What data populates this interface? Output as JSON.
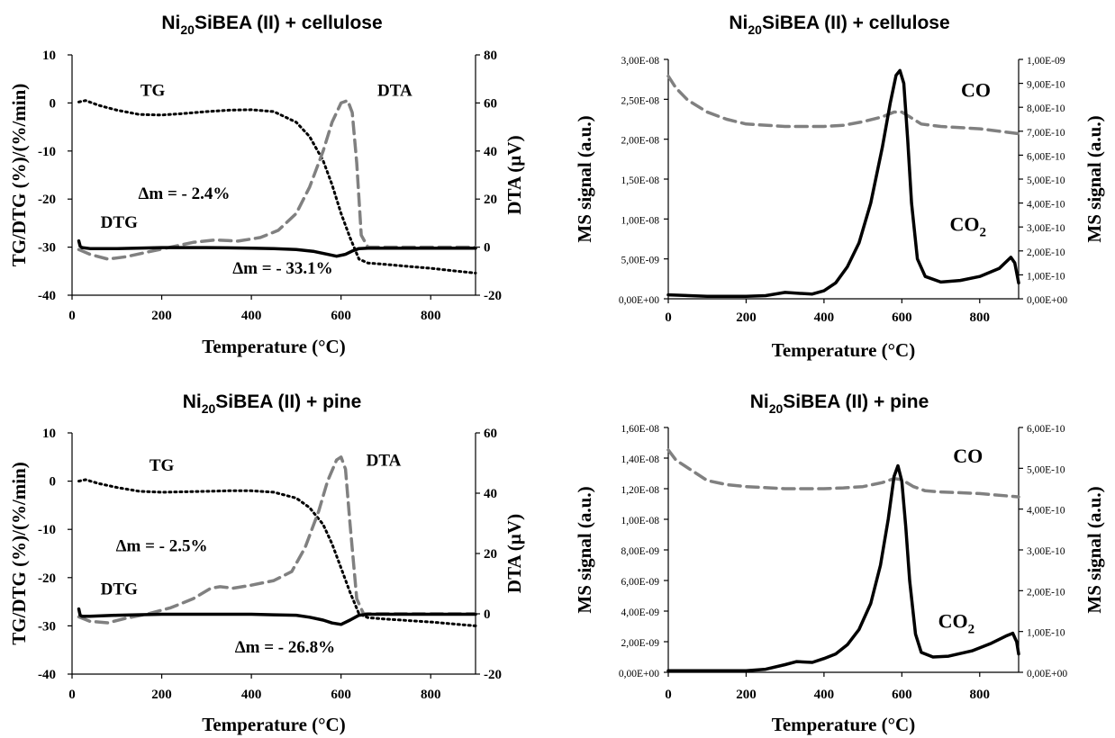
{
  "chart_data": [
    {
      "type": "line",
      "panel": "TG/DTA cellulose",
      "title": {
        "pre": "Ni",
        "sub": "20",
        "post": "SiBEA (II) + cellulose"
      },
      "xlabel": "Temperature (°C)",
      "ylabel": "TG/DTG (%)/(%/min)",
      "y2label": "DTA (µV)",
      "xlim": [
        0,
        900
      ],
      "ylim": [
        -40,
        10
      ],
      "y2lim": [
        -20,
        80
      ],
      "xticks": [
        "0",
        "200",
        "400",
        "600",
        "800"
      ],
      "yticks": [
        "-40",
        "-30",
        "-20",
        "-10",
        "0",
        "10"
      ],
      "y2ticks": [
        "-20",
        "0",
        "20",
        "40",
        "60",
        "80"
      ],
      "annotations": [
        {
          "text": "TG",
          "x": 180,
          "y": 1.5
        },
        {
          "text": "DTA",
          "x": 720,
          "y": 1.5
        },
        {
          "text": "Δm = - 2.4%",
          "x": 250,
          "y": -20
        },
        {
          "text": "DTG",
          "x": 105,
          "y": -26
        },
        {
          "text": "Δm = - 33.1%",
          "x": 470,
          "y": -35.5
        }
      ],
      "series": [
        {
          "name": "TG",
          "axis": "left",
          "style": "dotted",
          "color": "#000000",
          "x": [
            15,
            30,
            60,
            100,
            150,
            200,
            250,
            300,
            350,
            400,
            450,
            500,
            530,
            560,
            580,
            600,
            620,
            640,
            660,
            700,
            750,
            800,
            850,
            900
          ],
          "y": [
            0.2,
            0.5,
            -0.5,
            -1.5,
            -2.4,
            -2.5,
            -2.2,
            -1.8,
            -1.5,
            -1.4,
            -1.8,
            -4,
            -7,
            -12,
            -17,
            -23,
            -28,
            -32.5,
            -33.3,
            -33.6,
            -34,
            -34.4,
            -34.9,
            -35.4
          ]
        },
        {
          "name": "DTA",
          "axis": "right",
          "style": "dashed",
          "color": "#808080",
          "x": [
            15,
            40,
            80,
            120,
            170,
            220,
            270,
            320,
            370,
            420,
            460,
            500,
            530,
            560,
            580,
            600,
            615,
            625,
            635,
            645,
            660,
            700,
            750,
            800,
            850,
            900
          ],
          "y": [
            -1,
            -3,
            -5,
            -4,
            -2,
            0,
            2,
            3,
            2.5,
            4,
            7,
            14,
            25,
            40,
            52,
            60,
            61,
            56,
            35,
            5,
            0,
            0,
            0,
            0,
            0,
            0
          ]
        },
        {
          "name": "DTG",
          "axis": "left",
          "style": "solid",
          "color": "#000000",
          "x": [
            15,
            18,
            22,
            40,
            100,
            200,
            300,
            400,
            450,
            500,
            540,
            570,
            590,
            610,
            625,
            640,
            660,
            700,
            800,
            900
          ],
          "y": [
            -28.7,
            -29.8,
            -30.1,
            -30.3,
            -30.3,
            -30.1,
            -30.1,
            -30.2,
            -30.3,
            -30.5,
            -30.9,
            -31.5,
            -31.9,
            -31.5,
            -30.8,
            -30.3,
            -30.2,
            -30.2,
            -30.2,
            -30.2
          ]
        }
      ]
    },
    {
      "type": "line",
      "panel": "MS cellulose",
      "title": {
        "pre": "Ni",
        "sub": "20",
        "post": "SiBEA (II) + cellulose"
      },
      "xlabel": "Temperature (°C)",
      "ylabel": "MS signal (a.u.)",
      "y2label": "MS signal (a.u.)",
      "xlim": [
        0,
        900
      ],
      "ylim": [
        0,
        3e-08
      ],
      "y2lim": [
        0,
        1e-09
      ],
      "xticks": [
        "0",
        "200",
        "400",
        "600",
        "800"
      ],
      "yticks": [
        "0,00E+00",
        "5,00E-09",
        "1,00E-08",
        "1,50E-08",
        "2,00E-08",
        "2,50E-08",
        "3,00E-08"
      ],
      "y2ticks": [
        "0,00E+00",
        "1,00E-10",
        "2,00E-10",
        "3,00E-10",
        "4,00E-10",
        "5,00E-10",
        "6,00E-10",
        "7,00E-10",
        "8,00E-10",
        "9,00E-10",
        "1,00E-09"
      ],
      "annotations": [
        {
          "text": "CO",
          "x": 790,
          "y": 2.53e-08
        },
        {
          "text": "CO",
          "sub": "2",
          "x": 770,
          "y": 8.5e-09
        }
      ],
      "series": [
        {
          "name": "CO",
          "axis": "right",
          "style": "dashed",
          "color": "#808080",
          "x": [
            0,
            20,
            50,
            100,
            150,
            200,
            300,
            400,
            450,
            500,
            550,
            580,
            600,
            620,
            650,
            700,
            800,
            900
          ],
          "y": [
            9.3e-10,
            8.8e-10,
            8.3e-10,
            7.8e-10,
            7.5e-10,
            7.3e-10,
            7.2e-10,
            7.2e-10,
            7.25e-10,
            7.4e-10,
            7.6e-10,
            7.8e-10,
            7.8e-10,
            7.6e-10,
            7.3e-10,
            7.2e-10,
            7.1e-10,
            6.9e-10
          ]
        },
        {
          "name": "CO2",
          "axis": "left",
          "style": "solid",
          "color": "#000000",
          "x": [
            0,
            100,
            200,
            250,
            300,
            330,
            370,
            400,
            430,
            460,
            490,
            520,
            550,
            570,
            585,
            595,
            605,
            615,
            625,
            640,
            660,
            700,
            750,
            800,
            850,
            880,
            890,
            900
          ],
          "y": [
            5e-10,
            3e-10,
            3e-10,
            4e-10,
            8e-10,
            7e-10,
            6e-10,
            1e-09,
            2e-09,
            4e-09,
            7e-09,
            1.2e-08,
            1.9e-08,
            2.45e-08,
            2.8e-08,
            2.86e-08,
            2.7e-08,
            2e-08,
            1.2e-08,
            5e-09,
            2.8e-09,
            2.1e-09,
            2.3e-09,
            2.8e-09,
            3.8e-09,
            5.2e-09,
            4.5e-09,
            2e-09
          ]
        }
      ]
    },
    {
      "type": "line",
      "panel": "TG/DTA pine",
      "title": {
        "pre": "Ni",
        "sub": "20",
        "post": "SiBEA (II)  + pine"
      },
      "xlabel": "Temperature (°C)",
      "ylabel": "TG/DTG (%)/(%/min)",
      "y2label": "DTA (µV)",
      "xlim": [
        0,
        900
      ],
      "ylim": [
        -40,
        10
      ],
      "y2lim": [
        -20,
        60
      ],
      "xticks": [
        "0",
        "200",
        "400",
        "600",
        "800"
      ],
      "yticks": [
        "-40",
        "-30",
        "-20",
        "-10",
        "0",
        "10"
      ],
      "y2ticks": [
        "-20",
        "0",
        "20",
        "40",
        "60"
      ],
      "annotations": [
        {
          "text": "TG",
          "x": 200,
          "y": 2.2
        },
        {
          "text": "DTA",
          "x": 695,
          "y": 3.2
        },
        {
          "text": "Δm = - 2.5%",
          "x": 200,
          "y": -14.5
        },
        {
          "text": "DTG",
          "x": 105,
          "y": -23.5
        },
        {
          "text": "Δm = - 26.8%",
          "x": 475,
          "y": -35.5
        }
      ],
      "series": [
        {
          "name": "TG",
          "axis": "left",
          "style": "dotted",
          "color": "#000000",
          "x": [
            15,
            30,
            60,
            100,
            150,
            200,
            250,
            300,
            350,
            400,
            450,
            500,
            530,
            560,
            580,
            600,
            620,
            640,
            660,
            700,
            800,
            900
          ],
          "y": [
            0,
            0.3,
            -0.5,
            -1.3,
            -2.1,
            -2.3,
            -2.2,
            -2.1,
            -2.0,
            -2.0,
            -2.3,
            -3.5,
            -5.5,
            -9,
            -13,
            -18,
            -23,
            -27.5,
            -28.3,
            -28.6,
            -29.2,
            -30
          ]
        },
        {
          "name": "DTA",
          "axis": "right",
          "style": "dashed",
          "color": "#808080",
          "x": [
            15,
            40,
            80,
            120,
            170,
            220,
            270,
            310,
            330,
            360,
            400,
            450,
            490,
            520,
            550,
            570,
            590,
            600,
            610,
            620,
            635,
            650,
            700,
            800,
            900
          ],
          "y": [
            -1,
            -2.5,
            -3,
            -1.5,
            0,
            2,
            5,
            8.5,
            9,
            8.5,
            9.5,
            11,
            14,
            22,
            34,
            44,
            51,
            52,
            48,
            30,
            5,
            0,
            0,
            0,
            0
          ]
        },
        {
          "name": "DTG",
          "axis": "left",
          "style": "solid",
          "color": "#000000",
          "x": [
            15,
            18,
            22,
            40,
            100,
            200,
            300,
            400,
            450,
            500,
            530,
            560,
            580,
            600,
            620,
            640,
            660,
            700,
            800,
            900
          ],
          "y": [
            -26.5,
            -27.8,
            -28.0,
            -28.0,
            -27.8,
            -27.6,
            -27.6,
            -27.6,
            -27.7,
            -27.8,
            -28.2,
            -28.8,
            -29.4,
            -29.7,
            -28.8,
            -27.8,
            -27.6,
            -27.6,
            -27.6,
            -27.6
          ]
        }
      ]
    },
    {
      "type": "line",
      "panel": "MS pine",
      "title": {
        "pre": "Ni",
        "sub": "20",
        "post": "SiBEA (II) + pine"
      },
      "xlabel": "Temperature (°C)",
      "ylabel": "MS signal (a.u.)",
      "y2label": "MS signal (a.u.)",
      "xlim": [
        0,
        900
      ],
      "ylim": [
        0,
        1.6e-08
      ],
      "y2lim": [
        0,
        6e-10
      ],
      "xticks": [
        "0",
        "200",
        "400",
        "600",
        "800"
      ],
      "yticks": [
        "0,00E+00",
        "2,00E-09",
        "4,00E-09",
        "6,00E-09",
        "8,00E-09",
        "1,00E-08",
        "1,20E-08",
        "1,40E-08",
        "1,60E-08"
      ],
      "y2ticks": [
        "0,00E+00",
        "1,00E-10",
        "2,00E-10",
        "3,00E-10",
        "4,00E-10",
        "5,00E-10",
        "6,00E-10"
      ],
      "annotations": [
        {
          "text": "CO",
          "x": 770,
          "y": 1.37e-08
        },
        {
          "text": "CO",
          "sub": "2",
          "x": 740,
          "y": 2.9e-09
        }
      ],
      "series": [
        {
          "name": "CO",
          "axis": "right",
          "style": "dashed",
          "color": "#808080",
          "x": [
            0,
            20,
            60,
            100,
            150,
            200,
            300,
            400,
            450,
            500,
            550,
            580,
            600,
            630,
            660,
            700,
            800,
            900
          ],
          "y": [
            5.45e-10,
            5.2e-10,
            4.95e-10,
            4.7e-10,
            4.6e-10,
            4.55e-10,
            4.5e-10,
            4.5e-10,
            4.52e-10,
            4.55e-10,
            4.65e-10,
            4.75e-10,
            4.72e-10,
            4.55e-10,
            4.45e-10,
            4.42e-10,
            4.38e-10,
            4.3e-10
          ]
        },
        {
          "name": "CO2",
          "axis": "left",
          "style": "solid",
          "color": "#000000",
          "x": [
            0,
            100,
            200,
            250,
            300,
            330,
            370,
            400,
            430,
            460,
            490,
            520,
            545,
            565,
            580,
            590,
            600,
            610,
            620,
            635,
            650,
            680,
            720,
            780,
            830,
            870,
            885,
            895,
            900
          ],
          "y": [
            1e-10,
            1e-10,
            1e-10,
            2e-10,
            5e-10,
            7e-10,
            6.5e-10,
            9e-10,
            1.2e-09,
            1.8e-09,
            2.8e-09,
            4.5e-09,
            7e-09,
            1e-08,
            1.28e-08,
            1.35e-08,
            1.25e-08,
            9.5e-09,
            6e-09,
            2.5e-09,
            1.3e-09,
            1e-09,
            1.05e-09,
            1.4e-09,
            1.9e-09,
            2.4e-09,
            2.55e-09,
            2e-09,
            1.2e-09
          ]
        }
      ]
    }
  ]
}
